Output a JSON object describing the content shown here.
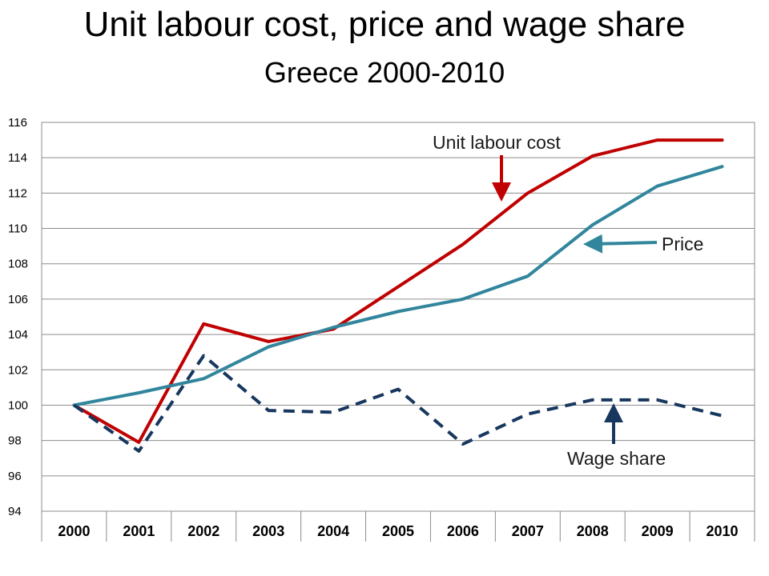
{
  "title": "Unit labour cost, price and wage share",
  "subtitle": "Greece 2000-2010",
  "chart_data": {
    "type": "line",
    "x": [
      "2000",
      "2001",
      "2002",
      "2003",
      "2004",
      "2005",
      "2006",
      "2007",
      "2008",
      "2009",
      "2010"
    ],
    "ylim": [
      94,
      116
    ],
    "yticks": [
      94,
      96,
      98,
      100,
      102,
      104,
      106,
      108,
      110,
      112,
      114,
      116
    ],
    "grid": true,
    "series": [
      {
        "name": "Unit labour cost",
        "color": "#c00000",
        "style": "solid",
        "values": [
          100,
          97.9,
          104.6,
          103.6,
          104.3,
          106.7,
          109.1,
          112.0,
          114.1,
          115.0,
          115.0
        ]
      },
      {
        "name": "Price",
        "color": "#31859c",
        "style": "solid",
        "values": [
          100,
          100.7,
          101.5,
          103.3,
          104.4,
          105.3,
          106.0,
          107.3,
          110.2,
          112.4,
          113.5
        ]
      },
      {
        "name": "Wage share",
        "color": "#17375e",
        "style": "dashed",
        "values": [
          100,
          97.4,
          102.8,
          99.7,
          99.6,
          100.9,
          97.8,
          99.5,
          100.3,
          100.3,
          99.4
        ]
      }
    ],
    "annotations": [
      {
        "text": "Unit labour cost",
        "series": "Unit labour cost",
        "arrow_to": "2007.5"
      },
      {
        "text": "Price",
        "series": "Price",
        "arrow_to": "2008.2"
      },
      {
        "text": "Wage share",
        "series": "Wage share",
        "arrow_to": "2008.6"
      }
    ]
  }
}
